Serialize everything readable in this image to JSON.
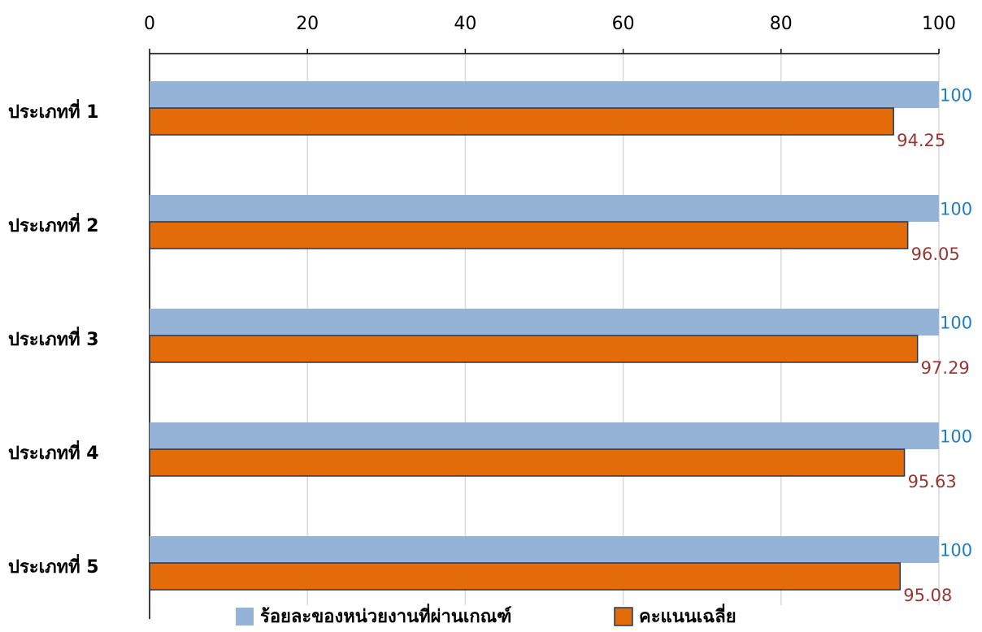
{
  "chart_data": {
    "type": "bar",
    "orientation": "horizontal",
    "categories": [
      "ประเภทที่ 1",
      "ประเภทที่ 2",
      "ประเภทที่ 3",
      "ประเภทที่ 4",
      "ประเภทที่ 5"
    ],
    "series": [
      {
        "name": "ร้อยละของหน่วยงานที่ผ่านเกณฑ์",
        "values": [
          100,
          100,
          100,
          100,
          100
        ],
        "color": "#95b3d7",
        "label_color": "#1f7ec1"
      },
      {
        "name": "คะแนนเฉลี่ย",
        "values": [
          94.25,
          96.05,
          97.29,
          95.63,
          95.08
        ],
        "color": "#e36c0a",
        "label_color": "#953735"
      }
    ],
    "xlim": [
      0,
      100
    ],
    "xticks": [
      "0",
      "20",
      "40",
      "60",
      "80",
      "100"
    ],
    "axis_position": "top",
    "grid": true,
    "grid_color": "#d9d9d9",
    "legend_position": "bottom",
    "title": "",
    "xlabel": "",
    "ylabel": ""
  }
}
